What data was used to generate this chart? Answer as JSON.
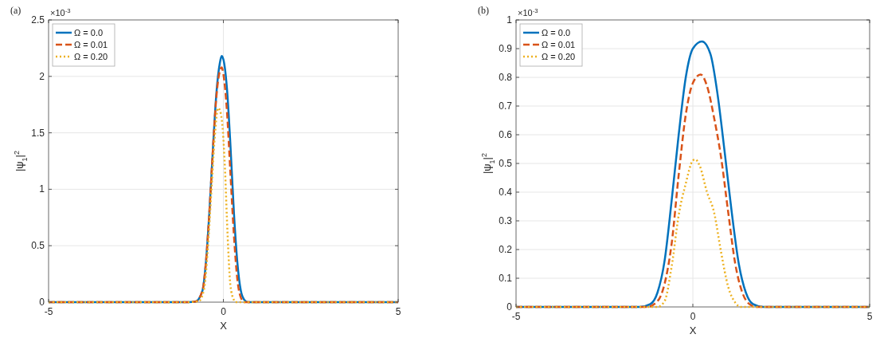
{
  "chart_data": [
    {
      "type": "line",
      "title": "(a)",
      "xlabel": "X",
      "ylabel": "|ψ$_{1}$|$^{2}$",
      "annotations": [
        "×10$^{-3}$"
      ],
      "xlim": [
        -5,
        5
      ],
      "xticks": [
        -5,
        0,
        5
      ],
      "ylim": [
        0,
        2.5
      ],
      "yticks": [
        0,
        0.5,
        1,
        1.5,
        2,
        2.5
      ],
      "grid": true,
      "legend": "top left",
      "series": [
        {
          "name": "Ω = 0.0",
          "color": "#0072bd",
          "line_style": "solid",
          "x": [
            -5,
            -1,
            -0.8,
            -0.6,
            -0.5,
            -0.4,
            -0.3,
            -0.2,
            -0.1,
            -0.05,
            0,
            0.1,
            0.2,
            0.3,
            0.4,
            0.5,
            0.6,
            0.7,
            5
          ],
          "values": [
            0,
            0,
            0.005,
            0.1,
            0.35,
            0.8,
            1.35,
            1.85,
            2.12,
            2.18,
            2.15,
            1.9,
            1.4,
            0.8,
            0.35,
            0.1,
            0.02,
            0,
            0
          ]
        },
        {
          "name": "Ω = 0.01",
          "color": "#d95319",
          "line_style": "dashed",
          "x": [
            -5,
            -1,
            -0.8,
            -0.6,
            -0.5,
            -0.4,
            -0.3,
            -0.2,
            -0.1,
            -0.05,
            0,
            0.1,
            0.2,
            0.3,
            0.4,
            0.5,
            0.6,
            5
          ],
          "values": [
            0,
            0,
            0.005,
            0.1,
            0.35,
            0.8,
            1.35,
            1.82,
            2.05,
            2.08,
            2.02,
            1.7,
            1.15,
            0.6,
            0.2,
            0.04,
            0,
            0
          ]
        },
        {
          "name": "Ω = 0.20",
          "color": "#edb120",
          "line_style": "dotted",
          "x": [
            -5,
            -1,
            -0.7,
            -0.55,
            -0.45,
            -0.35,
            -0.25,
            -0.15,
            -0.1,
            0,
            0.05,
            0.1,
            0.15,
            0.2,
            0.3,
            0.35,
            5
          ],
          "values": [
            0,
            0,
            0.01,
            0.12,
            0.45,
            0.95,
            1.45,
            1.72,
            1.7,
            1.45,
            1.15,
            0.75,
            0.4,
            0.15,
            0.02,
            0,
            0
          ]
        }
      ]
    },
    {
      "type": "line",
      "title": "(b)",
      "xlabel": "X",
      "ylabel": "|ψ$_{1}$|$^{2}$",
      "annotations": [
        "×10$^{-3}$"
      ],
      "xlim": [
        -5,
        5
      ],
      "xticks": [
        -5,
        0,
        5
      ],
      "ylim": [
        0,
        1
      ],
      "yticks": [
        0,
        0.1,
        0.2,
        0.3,
        0.4,
        0.5,
        0.6,
        0.7,
        0.8,
        0.9,
        1
      ],
      "grid": true,
      "legend": "top left",
      "series": [
        {
          "name": "Ω = 0.0",
          "color": "#0072bd",
          "line_style": "solid",
          "x": [
            -5,
            -1.5,
            -1.2,
            -1,
            -0.8,
            -0.6,
            -0.4,
            -0.2,
            0,
            0.26,
            0.5,
            0.7,
            0.9,
            1.1,
            1.3,
            1.5,
            1.7,
            2,
            5
          ],
          "values": [
            0,
            0,
            0.01,
            0.05,
            0.16,
            0.37,
            0.6,
            0.8,
            0.9,
            0.925,
            0.88,
            0.74,
            0.54,
            0.33,
            0.15,
            0.05,
            0.01,
            0,
            0
          ]
        },
        {
          "name": "Ω = 0.01",
          "color": "#d95319",
          "line_style": "dashed",
          "x": [
            -5,
            -1.3,
            -1,
            -0.8,
            -0.6,
            -0.4,
            -0.2,
            0,
            0.22,
            0.4,
            0.6,
            0.8,
            1,
            1.2,
            1.4,
            1.6,
            1.8,
            5
          ],
          "values": [
            0,
            0,
            0.02,
            0.08,
            0.22,
            0.46,
            0.67,
            0.78,
            0.81,
            0.77,
            0.66,
            0.52,
            0.33,
            0.15,
            0.05,
            0.01,
            0,
            0
          ]
        },
        {
          "name": "Ω = 0.20",
          "color": "#edb120",
          "line_style": "dotted",
          "x": [
            -5,
            -1,
            -0.8,
            -0.6,
            -0.4,
            -0.2,
            0,
            0.07,
            0.2,
            0.4,
            0.6,
            0.8,
            1,
            1.2,
            1.35,
            5
          ],
          "values": [
            0,
            0,
            0.02,
            0.14,
            0.32,
            0.43,
            0.51,
            0.514,
            0.49,
            0.4,
            0.33,
            0.19,
            0.07,
            0.015,
            0,
            0
          ]
        }
      ]
    }
  ]
}
